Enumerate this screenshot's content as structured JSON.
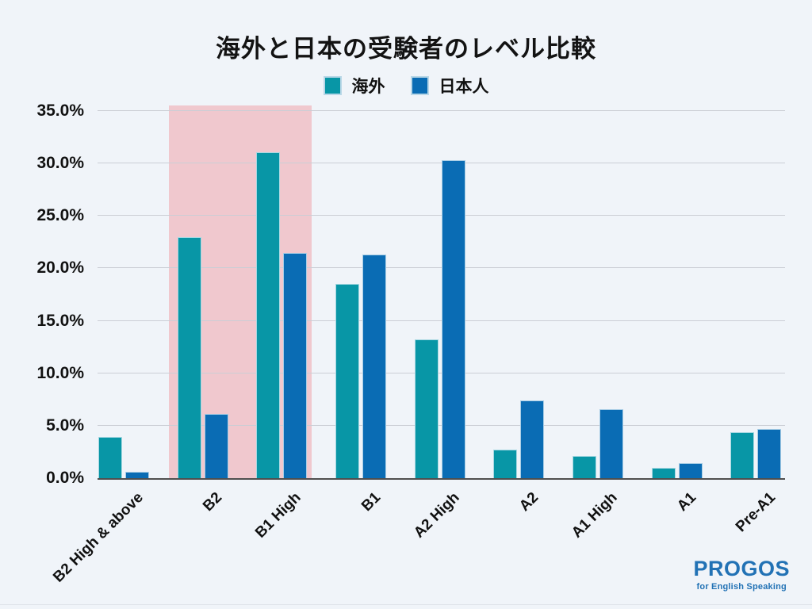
{
  "chart_data": {
    "type": "bar",
    "title": "海外と日本の受験者のレベル比較",
    "categories": [
      "B2 High & above",
      "B2",
      "B1 High",
      "B1",
      "A2 High",
      "A2",
      "A1 High",
      "A1",
      "Pre-A1"
    ],
    "series": [
      {
        "name": "海外",
        "color": "#0896a6",
        "values": [
          3.9,
          23.0,
          31.1,
          18.5,
          13.2,
          2.7,
          2.1,
          1.0,
          4.4
        ]
      },
      {
        "name": "日本人",
        "color": "#0a6cb4",
        "values": [
          0.6,
          6.1,
          21.5,
          21.3,
          30.3,
          7.4,
          6.6,
          1.4,
          4.7
        ]
      }
    ],
    "xlabel": "",
    "ylabel": "",
    "ylim": [
      0,
      35
    ],
    "yticks": [
      0,
      5,
      10,
      15,
      20,
      25,
      30,
      35
    ],
    "ytick_labels": [
      "0.0%",
      "5.0%",
      "10.0%",
      "15.0%",
      "20.0%",
      "25.0%",
      "30.0%",
      "35.0%"
    ],
    "grid": true,
    "legend_position": "top",
    "highlight": {
      "from": "B2",
      "to": "B1 High",
      "color": "#f0c8ce"
    }
  },
  "logo": {
    "brand": "PROGOS",
    "tagline": "for English Speaking",
    "color": "#2272b5"
  },
  "colors": {
    "background": "#f0f4f9",
    "gridline": "#cbced5",
    "axis": "#4f4f4f",
    "title_text": "#131313",
    "overseas_teal": "#0896a6",
    "japanese_blue": "#0a6cb4",
    "highlight_pink": "#f0c8ce"
  }
}
